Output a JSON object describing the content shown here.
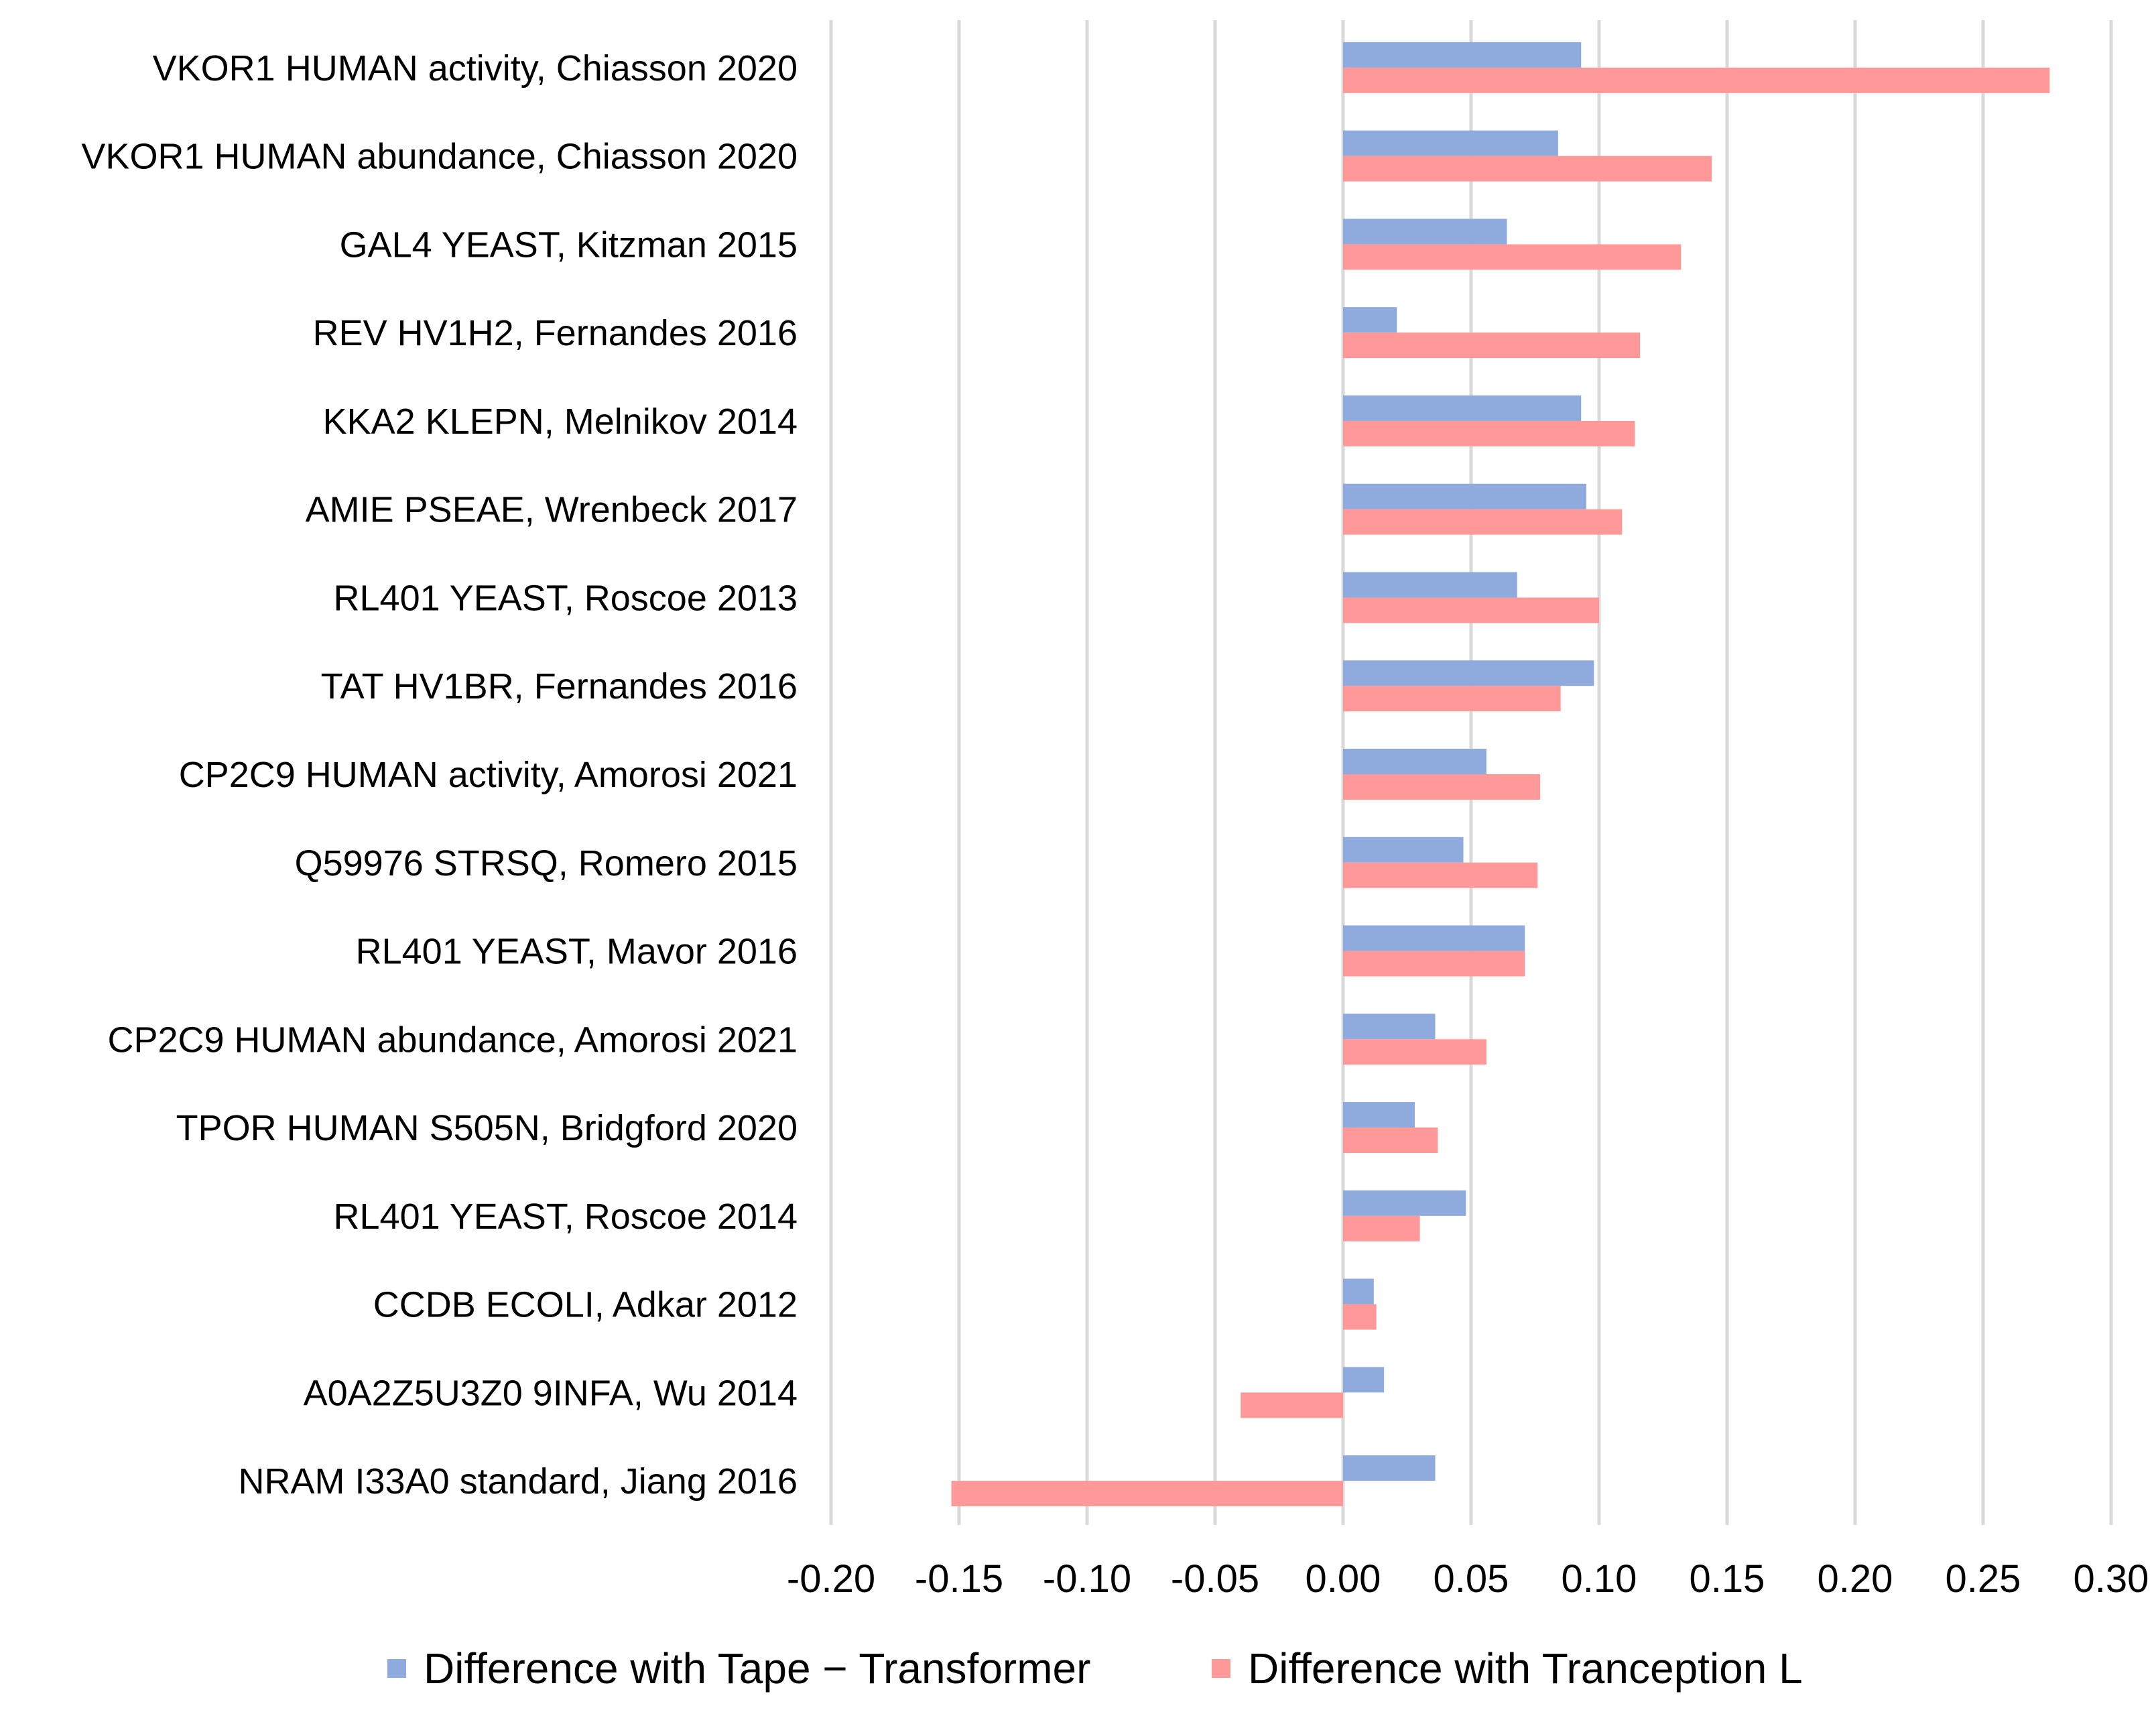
{
  "chart_data": {
    "type": "bar",
    "orientation": "horizontal",
    "categories": [
      "VKOR1 HUMAN activity, Chiasson 2020",
      "VKOR1 HUMAN abundance, Chiasson 2020",
      "GAL4 YEAST, Kitzman 2015",
      "REV HV1H2, Fernandes 2016",
      "KKA2 KLEPN, Melnikov 2014",
      "AMIE PSEAE, Wrenbeck 2017",
      "RL401 YEAST, Roscoe 2013",
      "TAT HV1BR, Fernandes 2016",
      "CP2C9 HUMAN activity, Amorosi 2021",
      "Q59976 STRSQ, Romero 2015",
      "RL401 YEAST, Mavor 2016",
      "CP2C9 HUMAN abundance, Amorosi 2021",
      "TPOR HUMAN S505N, Bridgford 2020",
      "RL401 YEAST, Roscoe 2014",
      "CCDB ECOLI, Adkar 2012",
      "A0A2Z5U3Z0 9INFA, Wu 2014",
      "NRAM I33A0 standard, Jiang 2016"
    ],
    "series": [
      {
        "name": "Difference with Tape − Transformer",
        "color": "#8faadc",
        "values": [
          0.093,
          0.084,
          0.064,
          0.021,
          0.093,
          0.095,
          0.068,
          0.098,
          0.056,
          0.047,
          0.071,
          0.036,
          0.028,
          0.048,
          0.012,
          0.016,
          0.036
        ]
      },
      {
        "name": "Difference with Tranception L",
        "color": "#ff9999",
        "values": [
          0.276,
          0.144,
          0.132,
          0.116,
          0.114,
          0.109,
          0.1,
          0.085,
          0.077,
          0.076,
          0.071,
          0.056,
          0.037,
          0.03,
          0.013,
          -0.04,
          -0.153
        ]
      }
    ],
    "x_ticks": [
      "-0.20",
      "-0.15",
      "-0.10",
      "-0.05",
      "0.00",
      "0.05",
      "0.10",
      "0.15",
      "0.20",
      "0.25",
      "0.30"
    ],
    "xlim": [
      -0.2,
      0.3
    ],
    "grid": true,
    "legend_position": "bottom",
    "title": "",
    "xlabel": "",
    "ylabel": ""
  }
}
